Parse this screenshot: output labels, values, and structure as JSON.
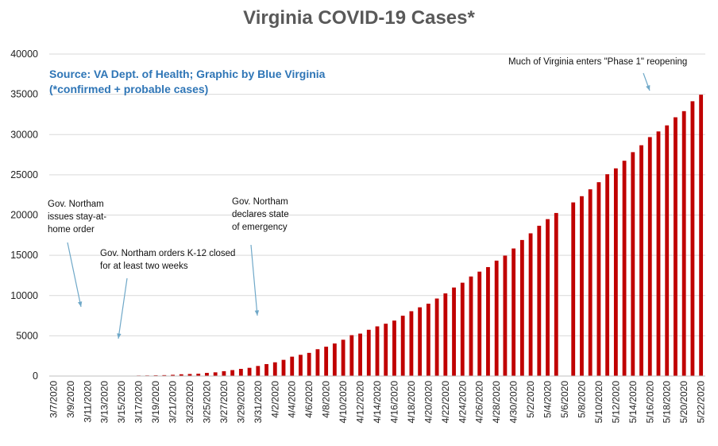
{
  "chart_data": {
    "type": "bar",
    "title": "Virginia COVID-19 Cases*",
    "xlabel": "",
    "ylabel": "",
    "ylim": [
      0,
      40000
    ],
    "yticks": [
      0,
      5000,
      10000,
      15000,
      20000,
      25000,
      30000,
      35000,
      40000
    ],
    "grid": true,
    "bar_color": "#c00000",
    "categories": [
      "3/7/2020",
      "3/8/2020",
      "3/9/2020",
      "3/10/2020",
      "3/11/2020",
      "3/12/2020",
      "3/13/2020",
      "3/14/2020",
      "3/15/2020",
      "3/16/2020",
      "3/17/2020",
      "3/18/2020",
      "3/19/2020",
      "3/20/2020",
      "3/21/2020",
      "3/22/2020",
      "3/23/2020",
      "3/24/2020",
      "3/25/2020",
      "3/26/2020",
      "3/27/2020",
      "3/28/2020",
      "3/29/2020",
      "3/30/2020",
      "3/31/2020",
      "4/1/2020",
      "4/2/2020",
      "4/3/2020",
      "4/4/2020",
      "4/5/2020",
      "4/6/2020",
      "4/7/2020",
      "4/8/2020",
      "4/9/2020",
      "4/10/2020",
      "4/11/2020",
      "4/12/2020",
      "4/13/2020",
      "4/14/2020",
      "4/15/2020",
      "4/16/2020",
      "4/17/2020",
      "4/18/2020",
      "4/19/2020",
      "4/20/2020",
      "4/21/2020",
      "4/22/2020",
      "4/23/2020",
      "4/24/2020",
      "4/25/2020",
      "4/26/2020",
      "4/27/2020",
      "4/28/2020",
      "4/29/2020",
      "4/30/2020",
      "5/1/2020",
      "5/2/2020",
      "5/3/2020",
      "5/4/2020",
      "5/5/2020",
      "5/6/2020",
      "5/7/2020",
      "5/8/2020",
      "5/9/2020",
      "5/10/2020",
      "5/11/2020",
      "5/12/2020",
      "5/13/2020",
      "5/14/2020",
      "5/15/2020",
      "5/16/2020",
      "5/17/2020",
      "5/18/2020",
      "5/19/2020",
      "5/20/2020",
      "5/21/2020",
      "5/22/2020"
    ],
    "tick_labels": [
      "3/7/2020",
      "3/9/2020",
      "3/11/2020",
      "3/13/2020",
      "3/15/2020",
      "3/17/2020",
      "3/19/2020",
      "3/21/2020",
      "3/23/2020",
      "3/25/2020",
      "3/27/2020",
      "3/29/2020",
      "3/31/2020",
      "4/2/2020",
      "4/4/2020",
      "4/6/2020",
      "4/8/2020",
      "4/10/2020",
      "4/12/2020",
      "4/14/2020",
      "4/16/2020",
      "4/18/2020",
      "4/20/2020",
      "4/22/2020",
      "4/24/2020",
      "4/26/2020",
      "4/28/2020",
      "4/30/2020",
      "5/2/2020",
      "5/4/2020",
      "5/6/2020",
      "5/8/2020",
      "5/10/2020",
      "5/12/2020",
      "5/14/2020",
      "5/16/2020",
      "5/18/2020",
      "5/20/2020",
      "5/22/2020"
    ],
    "series": [
      {
        "values": [
          2,
          2,
          3,
          3,
          8,
          9,
          17,
          30,
          45,
          45,
          67,
          77,
          94,
          114,
          152,
          219,
          254,
          290,
          391,
          460,
          604,
          739,
          890,
          1020,
          1250,
          1484,
          1706,
          2012,
          2407,
          2637,
          2878,
          3333,
          3645,
          4042,
          4509,
          5077,
          5274,
          5747,
          6171,
          6500,
          6889,
          7491,
          8053,
          8537,
          8990,
          9630,
          10266,
          10998,
          11594,
          12366,
          12970,
          13535,
          14339,
          14961,
          15846,
          16901,
          17731,
          18671,
          19492,
          20256,
          0,
          21570,
          22342,
          23196,
          24081,
          25070,
          25800,
          26746,
          27813,
          28672,
          29683,
          30388,
          31140,
          32145,
          32908,
          34137,
          34950
        ]
      }
    ],
    "source_text": [
      "Source: VA Dept. of Health; Graphic by Blue Virginia",
      "(*confirmed + probable cases)"
    ],
    "annotations": [
      {
        "lines": [
          "Gov. Northam",
          "issues stay-at-",
          "home order"
        ],
        "points_to": "3/9/2020"
      },
      {
        "lines": [
          "Gov. Northam orders K-12 closed",
          "for at least two weeks"
        ],
        "points_to": "3/13/2020"
      },
      {
        "lines": [
          "Gov. Northam",
          "declares state",
          "of emergency"
        ],
        "points_to": "3/12/2020"
      },
      {
        "lines": [
          "Much of Virginia enters \"Phase 1\" reopening"
        ],
        "points_to": "5/15/2020"
      }
    ]
  }
}
